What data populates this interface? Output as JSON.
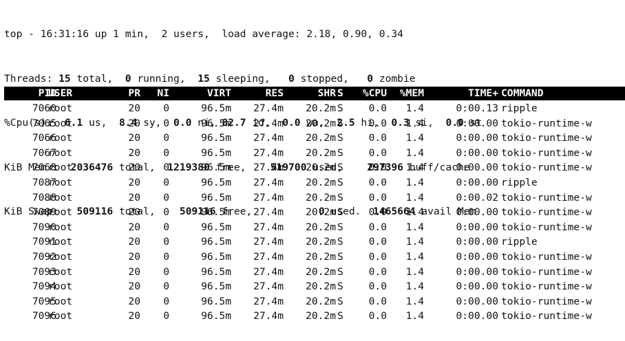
{
  "summary": {
    "top": {
      "prefix": "top - 16:31:16 up 1 min,  2 users,  load average: 2.18, 0.90, 0.34"
    },
    "tasks": {
      "label": "Threads: ",
      "total": "15",
      "total_label": " total,  ",
      "running": "0",
      "running_label": " running,  ",
      "sleeping": "15",
      "sleeping_label": " sleeping,   ",
      "stopped": "0",
      "stopped_label": " stopped,   ",
      "zombie": "0",
      "zombie_label": " zombie"
    },
    "cpu": {
      "label": "%Cpu(s):  ",
      "us": "6.1",
      "us_label": " us,  ",
      "sy": "8.4",
      "sy_label": " sy,  ",
      "ni": "0.0",
      "ni_label": " ni, ",
      "id": "82.7",
      "id_label": " id,  ",
      "wa": "0.0",
      "wa_label": " wa,  ",
      "hi": "2.5",
      "hi_label": " hi,  ",
      "si": "0.3",
      "si_label": " si,  ",
      "st": "0.0",
      "st_label": " st"
    },
    "mem": {
      "label": "KiB Mem :  ",
      "total": "2036476",
      "total_label": " total,  ",
      "free": "1219380",
      "free_label": " free,    ",
      "used": "519700",
      "used_label": " used,    ",
      "buff": "297396",
      "buff_label": " buff/cache"
    },
    "swap": {
      "label": "KiB Swap:   ",
      "total": "509116",
      "total_label": " total,    ",
      "free": "509116",
      "free_label": " free,           ",
      "used": "0",
      "used_label": " used.  ",
      "avail": "1465664",
      "avail_label": " avail Mem"
    }
  },
  "table": {
    "columns": {
      "pid": "PID",
      "user": "USER",
      "pr": "PR",
      "ni": "NI",
      "virt": "VIRT",
      "res": "RES",
      "shr": "SHR",
      "s": "S",
      "cpu": "%CPU",
      "mem": "%MEM",
      "time": "TIME+",
      "command": "COMMAND"
    },
    "rows": [
      {
        "pid": "7060",
        "user": "root",
        "pr": "20",
        "ni": "0",
        "virt": "96.5m",
        "res": "27.4m",
        "shr": "20.2m",
        "s": "S",
        "cpu": "0.0",
        "mem": "1.4",
        "time": "0:00.13",
        "command": "ripple"
      },
      {
        "pid": "7065",
        "user": "root",
        "pr": "20",
        "ni": "0",
        "virt": "96.5m",
        "res": "27.4m",
        "shr": "20.2m",
        "s": "S",
        "cpu": "0.0",
        "mem": "1.4",
        "time": "0:00.00",
        "command": "tokio-runtime-w"
      },
      {
        "pid": "7066",
        "user": "root",
        "pr": "20",
        "ni": "0",
        "virt": "96.5m",
        "res": "27.4m",
        "shr": "20.2m",
        "s": "S",
        "cpu": "0.0",
        "mem": "1.4",
        "time": "0:00.00",
        "command": "tokio-runtime-w"
      },
      {
        "pid": "7067",
        "user": "root",
        "pr": "20",
        "ni": "0",
        "virt": "96.5m",
        "res": "27.4m",
        "shr": "20.2m",
        "s": "S",
        "cpu": "0.0",
        "mem": "1.4",
        "time": "0:00.00",
        "command": "tokio-runtime-w"
      },
      {
        "pid": "7068",
        "user": "root",
        "pr": "20",
        "ni": "0",
        "virt": "96.5m",
        "res": "27.4m",
        "shr": "20.2m",
        "s": "S",
        "cpu": "0.0",
        "mem": "1.4",
        "time": "0:00.00",
        "command": "tokio-runtime-w"
      },
      {
        "pid": "7087",
        "user": "root",
        "pr": "20",
        "ni": "0",
        "virt": "96.5m",
        "res": "27.4m",
        "shr": "20.2m",
        "s": "S",
        "cpu": "0.0",
        "mem": "1.4",
        "time": "0:00.00",
        "command": "ripple"
      },
      {
        "pid": "7088",
        "user": "root",
        "pr": "20",
        "ni": "0",
        "virt": "96.5m",
        "res": "27.4m",
        "shr": "20.2m",
        "s": "S",
        "cpu": "0.0",
        "mem": "1.4",
        "time": "0:00.02",
        "command": "tokio-runtime-w"
      },
      {
        "pid": "7089",
        "user": "root",
        "pr": "20",
        "ni": "0",
        "virt": "96.5m",
        "res": "27.4m",
        "shr": "20.2m",
        "s": "S",
        "cpu": "0.0",
        "mem": "1.4",
        "time": "0:00.00",
        "command": "tokio-runtime-w"
      },
      {
        "pid": "7090",
        "user": "root",
        "pr": "20",
        "ni": "0",
        "virt": "96.5m",
        "res": "27.4m",
        "shr": "20.2m",
        "s": "S",
        "cpu": "0.0",
        "mem": "1.4",
        "time": "0:00.00",
        "command": "tokio-runtime-w"
      },
      {
        "pid": "7091",
        "user": "root",
        "pr": "20",
        "ni": "0",
        "virt": "96.5m",
        "res": "27.4m",
        "shr": "20.2m",
        "s": "S",
        "cpu": "0.0",
        "mem": "1.4",
        "time": "0:00.00",
        "command": "ripple"
      },
      {
        "pid": "7092",
        "user": "root",
        "pr": "20",
        "ni": "0",
        "virt": "96.5m",
        "res": "27.4m",
        "shr": "20.2m",
        "s": "S",
        "cpu": "0.0",
        "mem": "1.4",
        "time": "0:00.00",
        "command": "tokio-runtime-w"
      },
      {
        "pid": "7093",
        "user": "root",
        "pr": "20",
        "ni": "0",
        "virt": "96.5m",
        "res": "27.4m",
        "shr": "20.2m",
        "s": "S",
        "cpu": "0.0",
        "mem": "1.4",
        "time": "0:00.00",
        "command": "tokio-runtime-w"
      },
      {
        "pid": "7094",
        "user": "root",
        "pr": "20",
        "ni": "0",
        "virt": "96.5m",
        "res": "27.4m",
        "shr": "20.2m",
        "s": "S",
        "cpu": "0.0",
        "mem": "1.4",
        "time": "0:00.00",
        "command": "tokio-runtime-w"
      },
      {
        "pid": "7095",
        "user": "root",
        "pr": "20",
        "ni": "0",
        "virt": "96.5m",
        "res": "27.4m",
        "shr": "20.2m",
        "s": "S",
        "cpu": "0.0",
        "mem": "1.4",
        "time": "0:00.00",
        "command": "tokio-runtime-w"
      },
      {
        "pid": "7096",
        "user": "root",
        "pr": "20",
        "ni": "0",
        "virt": "96.5m",
        "res": "27.4m",
        "shr": "20.2m",
        "s": "S",
        "cpu": "0.0",
        "mem": "1.4",
        "time": "0:00.00",
        "command": "tokio-runtime-w"
      }
    ]
  },
  "colors": {
    "background": "#ffffff",
    "text": "#111111",
    "header_bg": "#000000",
    "header_text": "#ffffff"
  }
}
